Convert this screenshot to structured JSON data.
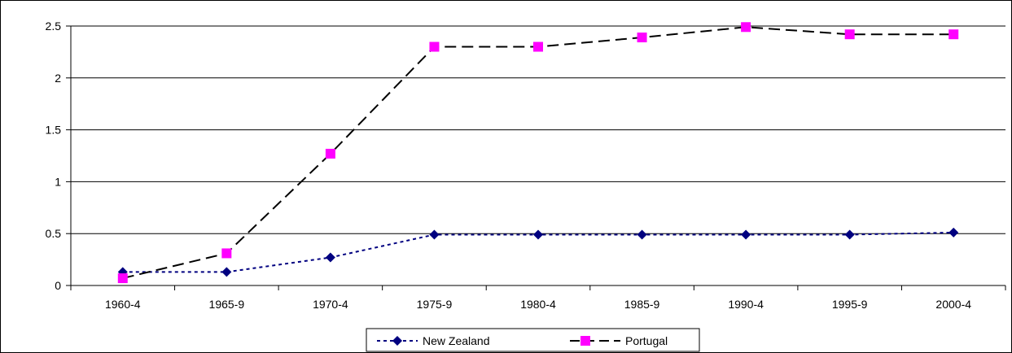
{
  "chart_data": {
    "type": "line",
    "title": "",
    "xlabel": "",
    "ylabel": "",
    "categories": [
      "1960-4",
      "1965-9",
      "1970-4",
      "1975-9",
      "1980-4",
      "1985-9",
      "1990-4",
      "1995-9",
      "2000-4"
    ],
    "ylim": [
      0,
      2.5
    ],
    "yticks": [
      "0",
      "0.5",
      "1",
      "1.5",
      "2",
      "2.5"
    ],
    "grid": true,
    "legend_position": "bottom",
    "series": [
      {
        "name": "New Zealand",
        "values": [
          0.13,
          0.13,
          0.27,
          0.49,
          0.49,
          0.49,
          0.49,
          0.49,
          0.51
        ],
        "color": "#000080",
        "line_style": "dotted",
        "marker": "diamond"
      },
      {
        "name": "Portugal",
        "values": [
          0.07,
          0.31,
          1.27,
          2.3,
          2.3,
          2.39,
          2.49,
          2.42,
          2.42
        ],
        "color": "#000000",
        "marker_color": "#FF00FF",
        "line_style": "dashed",
        "marker": "square"
      }
    ]
  }
}
